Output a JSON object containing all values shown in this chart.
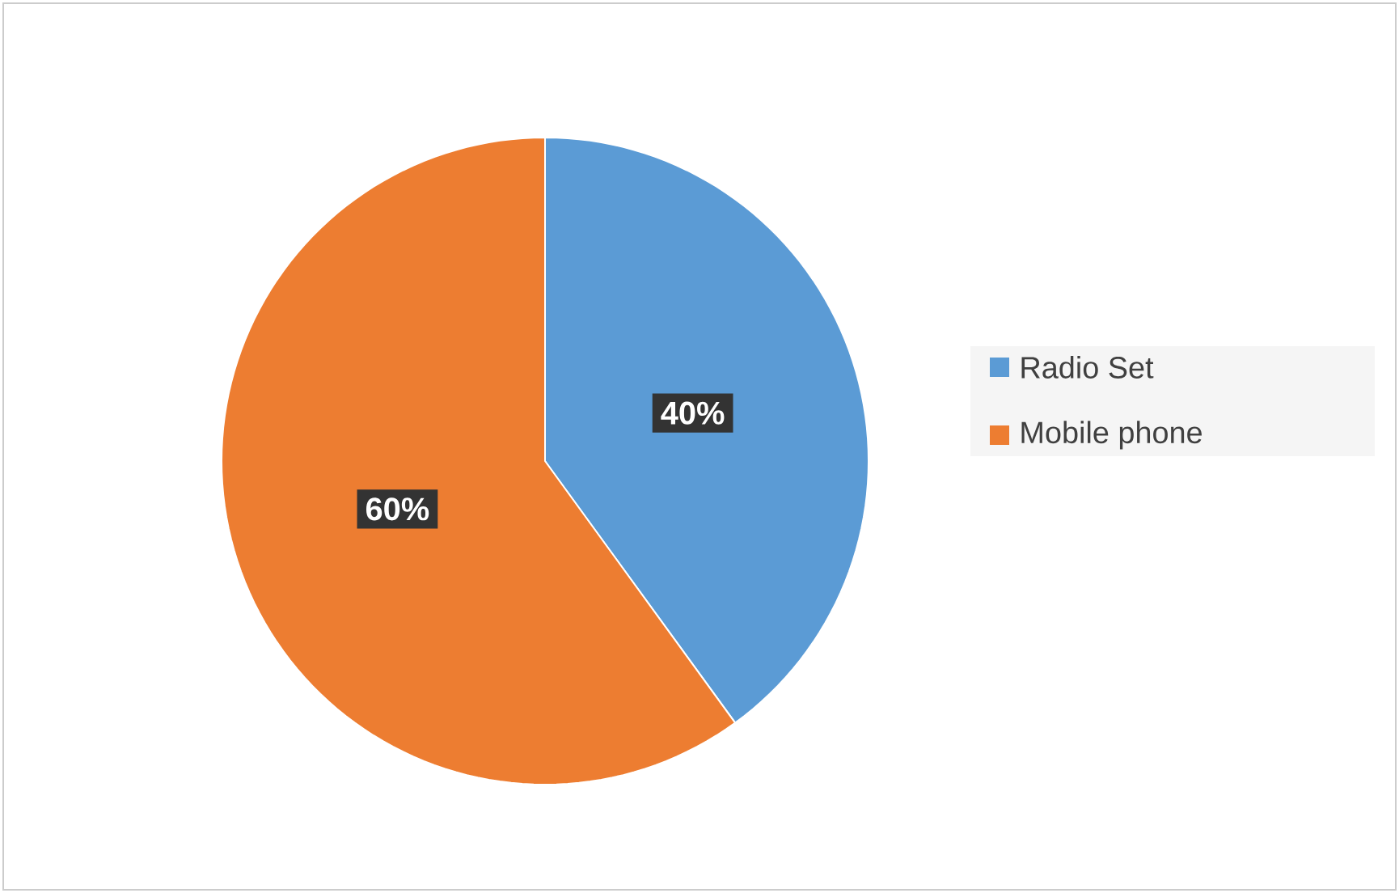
{
  "chart_data": {
    "type": "pie",
    "categories": [
      "Radio Set",
      "Mobile phone"
    ],
    "values": [
      40,
      60
    ],
    "colors": [
      "#5b9bd5",
      "#ed7d31"
    ],
    "value_labels": [
      "40%",
      "60%"
    ],
    "legend": "right"
  }
}
